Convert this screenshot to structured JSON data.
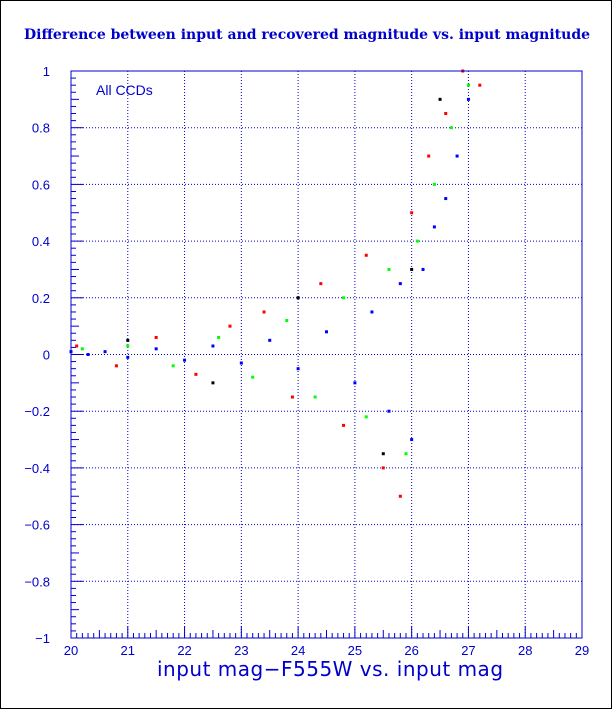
{
  "chart_data": {
    "type": "scatter",
    "title": "Difference between input and recovered magnitude vs. input magnitude",
    "xlabel": "input mag−F555W vs. input mag",
    "ylabel": "",
    "annotation": "All CCDs",
    "xlim": [
      20,
      29
    ],
    "ylim": [
      -1,
      1
    ],
    "xticks": [
      "20",
      "21",
      "22",
      "23",
      "24",
      "25",
      "26",
      "27",
      "28",
      "29"
    ],
    "yticks": [
      "1",
      "0.8",
      "0.6",
      "0.4",
      "0.2",
      "0",
      "−0.2",
      "−0.4",
      "−0.6",
      "−0.8",
      "−1"
    ],
    "grid": true,
    "series": [
      {
        "color": "#0000ff",
        "points": [
          [
            20.0,
            0.01
          ],
          [
            20.3,
            0.0
          ],
          [
            20.6,
            0.01
          ],
          [
            21.0,
            -0.01
          ],
          [
            21.5,
            0.02
          ],
          [
            22.0,
            -0.02
          ],
          [
            22.5,
            0.03
          ],
          [
            23.0,
            -0.03
          ],
          [
            23.5,
            0.05
          ],
          [
            24.0,
            -0.05
          ],
          [
            24.5,
            0.08
          ],
          [
            25.0,
            -0.1
          ],
          [
            25.3,
            0.15
          ],
          [
            25.6,
            -0.2
          ],
          [
            25.8,
            0.25
          ],
          [
            26.0,
            -0.3
          ],
          [
            26.2,
            0.3
          ],
          [
            26.4,
            0.45
          ],
          [
            26.6,
            0.55
          ],
          [
            26.8,
            0.7
          ],
          [
            27.0,
            0.9
          ]
        ]
      },
      {
        "color": "#ff0000",
        "points": [
          [
            20.1,
            0.03
          ],
          [
            20.8,
            -0.04
          ],
          [
            21.5,
            0.06
          ],
          [
            22.2,
            -0.07
          ],
          [
            22.8,
            0.1
          ],
          [
            23.4,
            0.15
          ],
          [
            23.9,
            -0.15
          ],
          [
            24.4,
            0.25
          ],
          [
            24.8,
            -0.25
          ],
          [
            25.2,
            0.35
          ],
          [
            25.5,
            -0.4
          ],
          [
            25.8,
            -0.5
          ],
          [
            26.0,
            0.5
          ],
          [
            26.3,
            0.7
          ],
          [
            26.6,
            0.85
          ],
          [
            26.9,
            1.0
          ],
          [
            27.2,
            0.95
          ]
        ]
      },
      {
        "color": "#00ff00",
        "points": [
          [
            20.2,
            0.02
          ],
          [
            21.0,
            0.03
          ],
          [
            21.8,
            -0.04
          ],
          [
            22.6,
            0.06
          ],
          [
            23.2,
            -0.08
          ],
          [
            23.8,
            0.12
          ],
          [
            24.3,
            -0.15
          ],
          [
            24.8,
            0.2
          ],
          [
            25.2,
            -0.22
          ],
          [
            25.6,
            0.3
          ],
          [
            25.9,
            -0.35
          ],
          [
            26.1,
            0.4
          ],
          [
            26.4,
            0.6
          ],
          [
            26.7,
            0.8
          ],
          [
            27.0,
            0.95
          ]
        ]
      },
      {
        "color": "#000000",
        "points": [
          [
            21.0,
            0.05
          ],
          [
            22.5,
            -0.1
          ],
          [
            24.0,
            0.2
          ],
          [
            25.5,
            -0.35
          ],
          [
            26.0,
            0.3
          ],
          [
            26.5,
            0.9
          ]
        ]
      }
    ]
  }
}
